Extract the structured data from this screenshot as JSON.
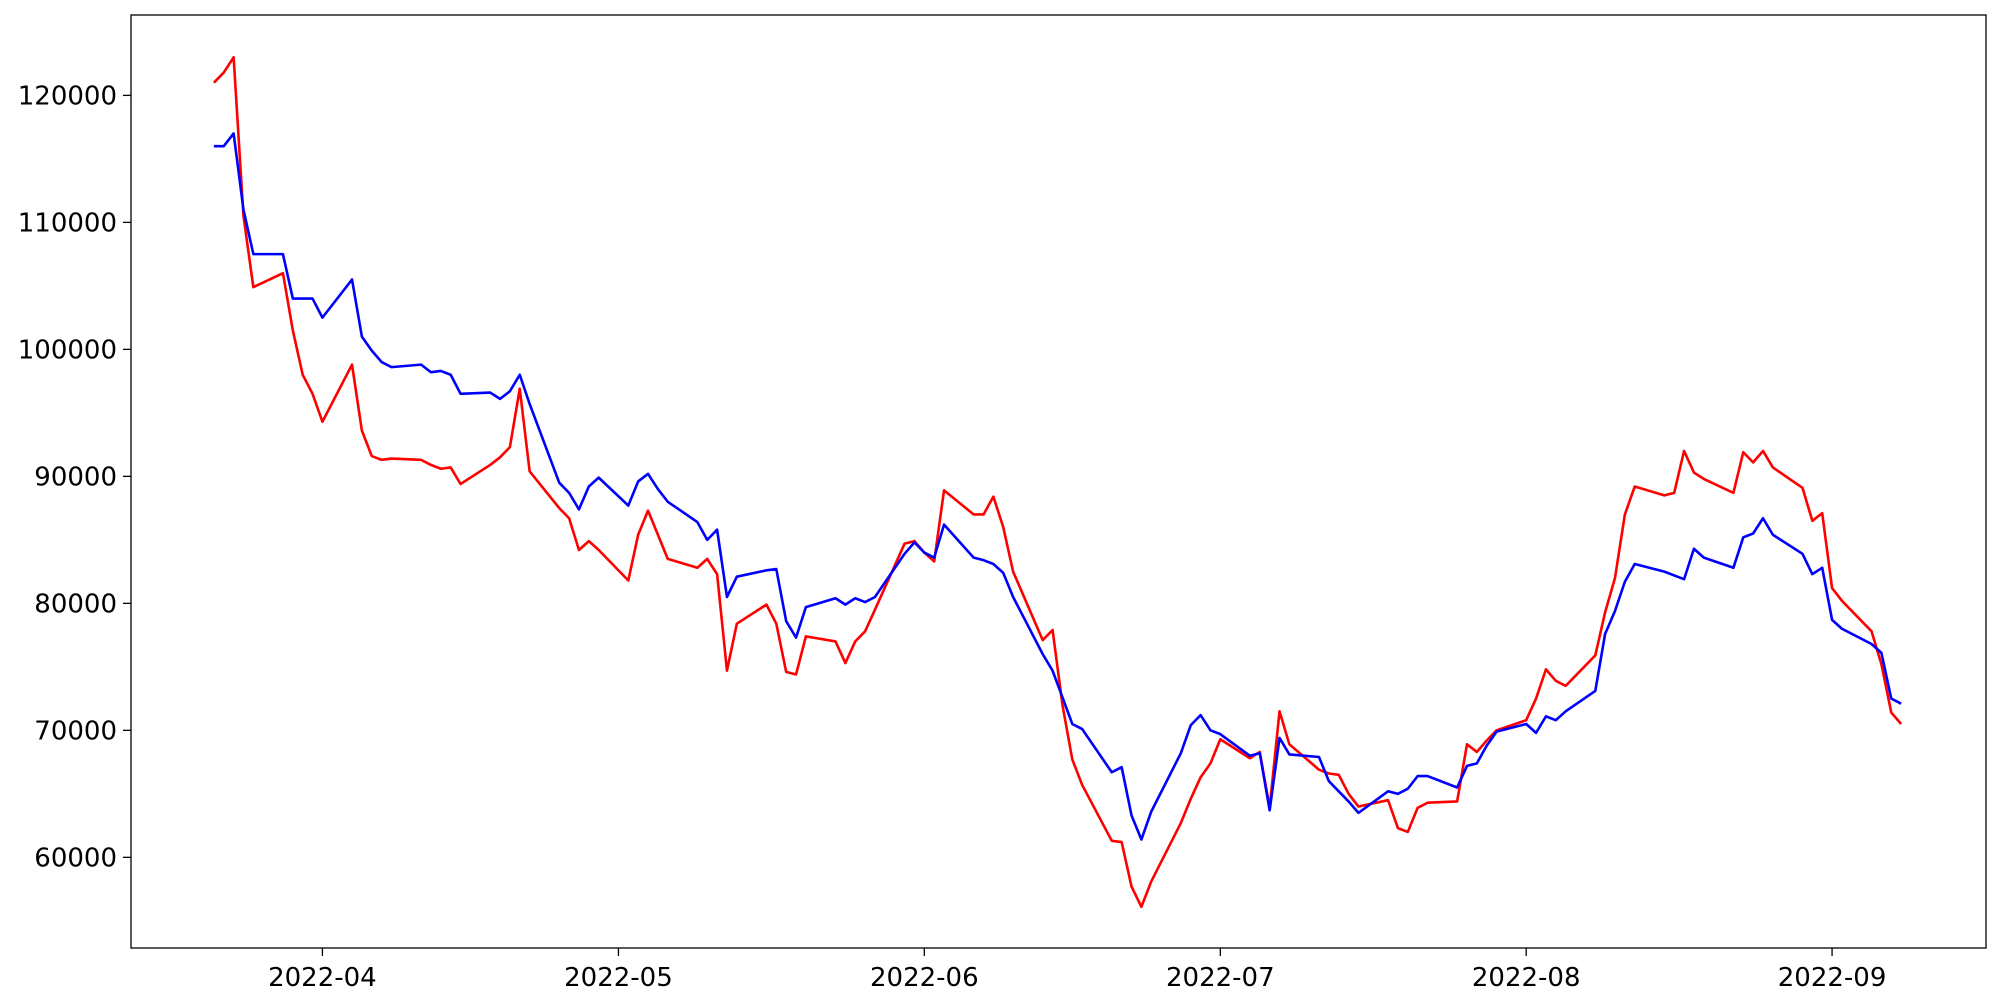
{
  "chart_data": {
    "type": "line",
    "x": [
      80,
      81,
      82,
      83,
      84,
      87,
      88,
      89,
      90,
      91,
      94,
      95,
      96,
      97,
      98,
      101,
      102,
      103,
      104,
      105,
      108,
      109,
      110,
      111,
      112,
      115,
      116,
      117,
      118,
      119,
      122,
      123,
      124,
      125,
      126,
      129,
      130,
      131,
      132,
      133,
      136,
      137,
      138,
      139,
      140,
      143,
      144,
      145,
      146,
      147,
      150,
      151,
      152,
      153,
      154,
      157,
      158,
      159,
      160,
      161,
      164,
      165,
      166,
      167,
      168,
      171,
      172,
      173,
      174,
      175,
      178,
      179,
      180,
      181,
      182,
      185,
      186,
      187,
      188,
      189,
      192,
      193,
      194,
      195,
      196,
      199,
      200,
      201,
      202,
      203,
      206,
      207,
      208,
      209,
      210,
      213,
      214,
      215,
      216,
      217,
      220,
      221,
      222,
      223,
      224,
      227,
      228,
      229,
      230,
      231,
      234,
      235,
      236,
      237,
      238,
      241,
      242,
      243,
      244,
      245,
      248,
      249,
      250,
      251
    ],
    "series": [
      {
        "color": "red",
        "values": [
          121000,
          121800,
          123000,
          110500,
          104900,
          106000,
          101500,
          98000,
          96500,
          94300,
          98800,
          93600,
          91600,
          91300,
          91400,
          91300,
          90900,
          90600,
          90700,
          89400,
          90900,
          91500,
          92300,
          96900,
          90400,
          87500,
          86700,
          84200,
          84900,
          84200,
          81800,
          85400,
          87300,
          85400,
          83500,
          82800,
          83500,
          82300,
          74700,
          78400,
          79900,
          78400,
          74600,
          74400,
          77400,
          77000,
          75300,
          77000,
          77800,
          79500,
          84700,
          84900,
          84000,
          83300,
          88900,
          87000,
          87000,
          88400,
          86000,
          82500,
          77100,
          77900,
          72000,
          67700,
          65700,
          61300,
          61200,
          57700,
          56100,
          58100,
          62700,
          64600,
          66300,
          67400,
          69300,
          67800,
          68300,
          63900,
          71500,
          68900,
          66900,
          66600,
          66500,
          65000,
          64000,
          64500,
          62300,
          62000,
          63900,
          64300,
          64400,
          68900,
          68300,
          69200,
          70000,
          70800,
          72500,
          74800,
          73900,
          73500,
          75900,
          79300,
          82000,
          87000,
          89200,
          88500,
          88700,
          92000,
          90300,
          89800,
          88700,
          91900,
          91100,
          92000,
          90700,
          89100,
          86500,
          87100,
          81200,
          80200,
          77800,
          75200,
          71400,
          70500
        ]
      },
      {
        "color": "blue",
        "values": [
          116000,
          116000,
          117000,
          111000,
          107500,
          107500,
          104000,
          104000,
          104000,
          102500,
          105500,
          101000,
          99900,
          99000,
          98600,
          98800,
          98200,
          98300,
          98000,
          96500,
          96600,
          96100,
          96700,
          98000,
          95700,
          89500,
          88700,
          87400,
          89200,
          89900,
          87700,
          89600,
          90200,
          89000,
          88000,
          86400,
          85000,
          85800,
          80500,
          82100,
          82600,
          82700,
          78600,
          77300,
          79700,
          80400,
          79900,
          80400,
          80100,
          80500,
          83900,
          84800,
          84000,
          83600,
          86200,
          83600,
          83400,
          83100,
          82400,
          80500,
          76000,
          74700,
          72600,
          70500,
          70100,
          66700,
          67100,
          63300,
          61400,
          63600,
          68200,
          70400,
          71200,
          70000,
          69700,
          68000,
          68200,
          63700,
          69400,
          68100,
          67900,
          66000,
          65200,
          64400,
          63500,
          65200,
          65000,
          65400,
          66400,
          66400,
          65500,
          67200,
          67400,
          68800,
          69900,
          70500,
          69800,
          71100,
          70800,
          71500,
          73100,
          77600,
          79400,
          81700,
          83100,
          82500,
          82200,
          81900,
          84300,
          83600,
          82800,
          85200,
          85500,
          86700,
          85400,
          83900,
          82300,
          82800,
          78700,
          78000,
          76800,
          76100,
          72500,
          72100
        ]
      }
    ],
    "xlim": [
      71.6,
      259.6
    ],
    "xticks": [
      {
        "value": 91,
        "label": "2022-04"
      },
      {
        "value": 121,
        "label": "2022-05"
      },
      {
        "value": 152,
        "label": "2022-06"
      },
      {
        "value": 182,
        "label": "2022-07"
      },
      {
        "value": 213,
        "label": "2022-08"
      },
      {
        "value": 244,
        "label": "2022-09"
      }
    ],
    "ylim": [
      52860,
      126330
    ],
    "yticks": [
      60000,
      70000,
      80000,
      90000,
      100000,
      110000,
      120000
    ]
  }
}
